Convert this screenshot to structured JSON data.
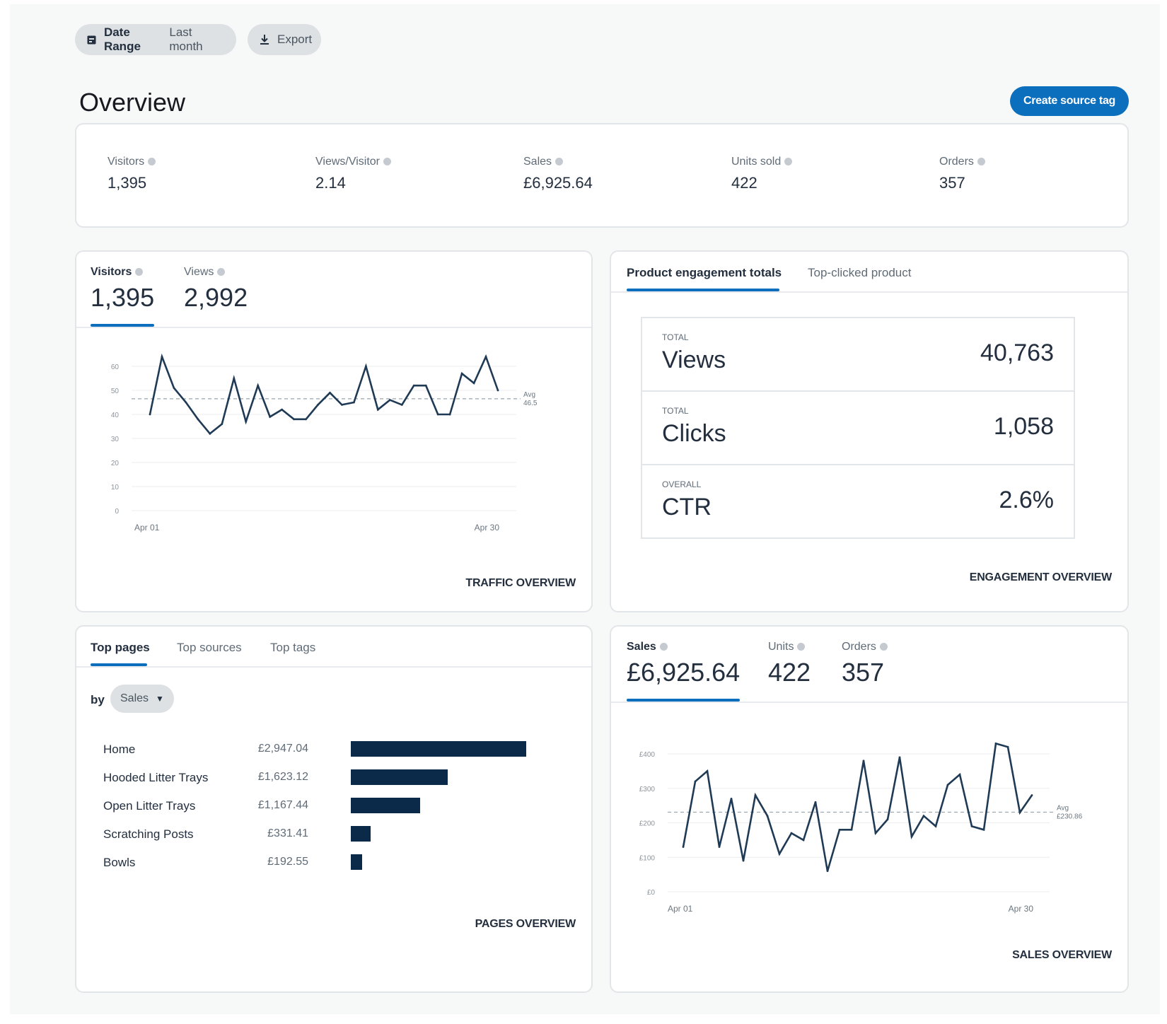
{
  "toolbar": {
    "date_range_label": "Date Range",
    "date_range_value": "Last month",
    "export_label": "Export"
  },
  "page": {
    "title": "Overview",
    "create_button": "Create source tag"
  },
  "summary": [
    {
      "label": "Visitors",
      "value": "1,395"
    },
    {
      "label": "Views/Visitor",
      "value": "2.14"
    },
    {
      "label": "Sales",
      "value": "£6,925.64"
    },
    {
      "label": "Units sold",
      "value": "422"
    },
    {
      "label": "Orders",
      "value": "357"
    }
  ],
  "traffic": {
    "tabs": [
      {
        "label": "Visitors",
        "value": "1,395"
      },
      {
        "label": "Views",
        "value": "2,992"
      }
    ],
    "link": "TRAFFIC OVERVIEW"
  },
  "engagement": {
    "tabs": [
      "Product engagement totals",
      "Top-clicked product"
    ],
    "rows": [
      {
        "caption": "TOTAL",
        "name": "Views",
        "value": "40,763"
      },
      {
        "caption": "TOTAL",
        "name": "Clicks",
        "value": "1,058"
      },
      {
        "caption": "OVERALL",
        "name": "CTR",
        "value": "2.6%"
      }
    ],
    "link": "ENGAGEMENT OVERVIEW"
  },
  "pages": {
    "tabs": [
      "Top pages",
      "Top sources",
      "Top tags"
    ],
    "by_label": "by",
    "dropdown_value": "Sales",
    "link": "PAGES OVERVIEW"
  },
  "sales": {
    "tabs": [
      {
        "label": "Sales",
        "value": "£6,925.64"
      },
      {
        "label": "Units",
        "value": "422"
      },
      {
        "label": "Orders",
        "value": "357"
      }
    ],
    "link": "SALES OVERVIEW"
  },
  "chart_data": [
    {
      "type": "line",
      "title": "Visitors",
      "x_start_label": "Apr 01",
      "x_end_label": "Apr 30",
      "yticks": [
        0,
        10,
        20,
        30,
        40,
        50,
        60
      ],
      "ylim": [
        0,
        60
      ],
      "values": [
        40,
        64,
        51,
        45,
        38,
        32,
        36,
        55,
        37,
        52,
        39,
        42,
        38,
        38,
        44,
        49,
        44,
        45,
        60,
        42,
        46,
        44,
        52,
        52,
        40,
        40,
        57,
        53,
        64,
        50
      ],
      "avg_label": [
        "Avg",
        "46.5"
      ],
      "avg_value": 46.5
    },
    {
      "type": "bar",
      "orientation": "horizontal",
      "categories": [
        "Home",
        "Hooded Litter Trays",
        "Open Litter Trays",
        "Scratching Posts",
        "Bowls"
      ],
      "labels": [
        "£2,947.04",
        "£1,623.12",
        "£1,167.44",
        "£331.41",
        "£192.55"
      ],
      "values": [
        2947.04,
        1623.12,
        1167.44,
        331.41,
        192.55
      ]
    },
    {
      "type": "line",
      "title": "Sales",
      "x_start_label": "Apr 01",
      "x_end_label": "Apr 30",
      "yticks": [
        "£0",
        "£100",
        "£200",
        "£300",
        "£400"
      ],
      "ylim": [
        0,
        400
      ],
      "values": [
        130,
        320,
        350,
        130,
        270,
        90,
        280,
        220,
        110,
        170,
        150,
        260,
        60,
        180,
        180,
        380,
        170,
        210,
        390,
        160,
        220,
        190,
        310,
        340,
        190,
        180,
        430,
        420,
        230,
        280
      ],
      "avg_label": [
        "Avg",
        "£230.86"
      ],
      "avg_value": 230.86
    }
  ]
}
